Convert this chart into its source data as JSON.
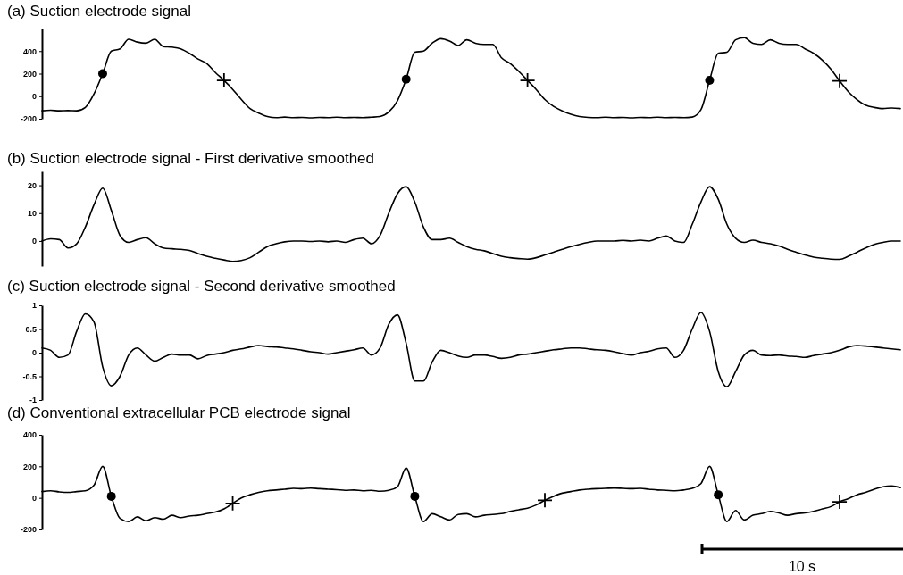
{
  "chart_data": [
    {
      "type": "line",
      "title": "(a)  Suction electrode signal",
      "categories": [
        null,
        null,
        null,
        null,
        null,
        null,
        null,
        null,
        null,
        null,
        null,
        null,
        null,
        null,
        null,
        null,
        null,
        null,
        null,
        null,
        null,
        null,
        null,
        null,
        null,
        null,
        null,
        null,
        null,
        null,
        null,
        null,
        null,
        null,
        null,
        null,
        null,
        null,
        null,
        null,
        null,
        null,
        null,
        null,
        null,
        null,
        null,
        null,
        null,
        null,
        null,
        null,
        null,
        null,
        null,
        null,
        null,
        null,
        null,
        null,
        null,
        null,
        null,
        null,
        null,
        null,
        null,
        null,
        null,
        null,
        null,
        null,
        null,
        null,
        null,
        null,
        null,
        null,
        null,
        null,
        null,
        null,
        null,
        null,
        null,
        null,
        null,
        null,
        null,
        null,
        null,
        null,
        null,
        null,
        null,
        null,
        null,
        null,
        null,
        null
      ],
      "ylim": [
        -200,
        600
      ],
      "yticks": [
        -200,
        0,
        200,
        400
      ],
      "tick_labels": "y",
      "series": [
        {
          "color": "#000000",
          "values": [
            -130,
            -125,
            -130,
            -128,
            -130,
            -100,
            20,
            200,
            400,
            420,
            505,
            480,
            470,
            505,
            440,
            435,
            420,
            380,
            330,
            290,
            210,
            140,
            60,
            -30,
            -110,
            -150,
            -180,
            -190,
            -185,
            -190,
            -188,
            -192,
            -188,
            -190,
            -186,
            -190,
            -188,
            -190,
            -186,
            -180,
            -140,
            -40,
            150,
            390,
            400,
            470,
            510,
            490,
            450,
            500,
            470,
            460,
            460,
            340,
            290,
            220,
            140,
            60,
            -30,
            -90,
            -130,
            -160,
            -180,
            -188,
            -190,
            -186,
            -190,
            -188,
            -192,
            -188,
            -190,
            -186,
            -190,
            -188,
            -190,
            -185,
            -120,
            140,
            380,
            390,
            500,
            520,
            470,
            460,
            500,
            470,
            460,
            460,
            420,
            380,
            320,
            240,
            135,
            40,
            -30,
            -80,
            -100,
            -110,
            -105,
            -110
          ]
        },
        {
          "type": "scatter",
          "marker": "circle",
          "color": "#000000",
          "values": [
            null,
            null,
            null,
            null,
            null,
            null,
            null,
            200,
            null,
            null,
            null,
            null,
            null,
            null,
            null,
            null,
            null,
            null,
            null,
            null,
            null,
            null,
            null,
            null,
            null,
            null,
            null,
            null,
            null,
            null,
            null,
            null,
            null,
            null,
            null,
            null,
            null,
            null,
            null,
            null,
            null,
            null,
            150,
            null,
            null,
            null,
            null,
            null,
            null,
            null,
            null,
            null,
            null,
            null,
            null,
            null,
            null,
            null,
            null,
            null,
            null,
            null,
            null,
            null,
            null,
            null,
            null,
            null,
            null,
            null,
            null,
            null,
            null,
            null,
            null,
            null,
            null,
            140,
            null,
            null,
            null,
            null,
            null,
            null,
            null,
            null,
            null,
            null,
            null,
            null,
            null,
            null,
            null,
            null,
            null,
            null,
            null,
            null,
            null,
            null
          ]
        },
        {
          "type": "scatter",
          "marker": "cross",
          "color": "#000000",
          "values": [
            null,
            null,
            null,
            null,
            null,
            null,
            null,
            null,
            null,
            null,
            null,
            null,
            null,
            null,
            null,
            null,
            null,
            null,
            null,
            null,
            null,
            140,
            null,
            null,
            null,
            null,
            null,
            null,
            null,
            null,
            null,
            null,
            null,
            null,
            null,
            null,
            null,
            null,
            null,
            null,
            null,
            null,
            null,
            null,
            null,
            null,
            null,
            null,
            null,
            null,
            null,
            null,
            null,
            null,
            null,
            null,
            140,
            null,
            null,
            null,
            null,
            null,
            null,
            null,
            null,
            null,
            null,
            null,
            null,
            null,
            null,
            null,
            null,
            null,
            null,
            null,
            null,
            null,
            null,
            null,
            null,
            null,
            null,
            null,
            null,
            null,
            null,
            null,
            null,
            null,
            null,
            null,
            135,
            null,
            null,
            null,
            null,
            null,
            null,
            null
          ]
        }
      ]
    },
    {
      "type": "line",
      "title": "(b)  Suction electrode signal - First derivative smoothed",
      "categories": [
        null,
        null,
        null,
        null,
        null,
        null,
        null,
        null,
        null,
        null,
        null,
        null,
        null,
        null,
        null,
        null,
        null,
        null,
        null,
        null,
        null,
        null,
        null,
        null,
        null,
        null,
        null,
        null,
        null,
        null,
        null,
        null,
        null,
        null,
        null,
        null,
        null,
        null,
        null,
        null,
        null,
        null,
        null,
        null,
        null,
        null,
        null,
        null,
        null,
        null,
        null,
        null,
        null,
        null,
        null,
        null,
        null,
        null,
        null,
        null,
        null,
        null,
        null,
        null,
        null,
        null,
        null,
        null,
        null,
        null,
        null,
        null,
        null,
        null,
        null,
        null,
        null,
        null,
        null,
        null,
        null,
        null,
        null,
        null,
        null,
        null,
        null,
        null,
        null,
        null,
        null,
        null,
        null,
        null,
        null,
        null,
        null,
        null,
        null,
        null
      ],
      "ylim": [
        -9,
        25
      ],
      "yticks": [
        0,
        10,
        20
      ],
      "tick_labels": "y",
      "series": [
        {
          "color": "#000000",
          "values": [
            0,
            0.8,
            0.5,
            -2.5,
            -1,
            5,
            13,
            19,
            11,
            2,
            -0.5,
            0.5,
            1.2,
            -1,
            -2.5,
            -2.8,
            -3,
            -3.4,
            -4.5,
            -5.5,
            -6.2,
            -6.8,
            -7.3,
            -7,
            -6,
            -4,
            -2,
            -1,
            -0.3,
            0,
            0,
            -0.2,
            0,
            -0.3,
            0,
            -0.5,
            0.5,
            1,
            -1,
            2,
            10,
            17,
            19.5,
            14,
            5,
            0.5,
            0.5,
            1,
            -0.5,
            -2,
            -3,
            -3.5,
            -4.5,
            -5.5,
            -6,
            -6.3,
            -6.5,
            -6,
            -5,
            -4,
            -3,
            -2,
            -1.2,
            -0.5,
            0,
            0,
            0,
            0.2,
            0,
            0.3,
            0,
            1,
            1.8,
            0,
            -0.5,
            6,
            14,
            19.5,
            15,
            6,
            1,
            -0.5,
            0.3,
            -0.5,
            -1,
            -1.8,
            -3,
            -4,
            -5,
            -5.8,
            -6.2,
            -6.5,
            -6.6,
            -5.5,
            -4,
            -2.5,
            -1.2,
            -0.5,
            0,
            0
          ]
        }
      ]
    },
    {
      "type": "line",
      "title": "(c)  Suction electrode signal - Second derivative smoothed",
      "categories": [
        null,
        null,
        null,
        null,
        null,
        null,
        null,
        null,
        null,
        null,
        null,
        null,
        null,
        null,
        null,
        null,
        null,
        null,
        null,
        null,
        null,
        null,
        null,
        null,
        null,
        null,
        null,
        null,
        null,
        null,
        null,
        null,
        null,
        null,
        null,
        null,
        null,
        null,
        null,
        null,
        null,
        null,
        null,
        null,
        null,
        null,
        null,
        null,
        null,
        null,
        null,
        null,
        null,
        null,
        null,
        null,
        null,
        null,
        null,
        null,
        null,
        null,
        null,
        null,
        null,
        null,
        null,
        null,
        null,
        null,
        null,
        null,
        null,
        null,
        null,
        null,
        null,
        null,
        null,
        null,
        null,
        null,
        null,
        null,
        null,
        null,
        null,
        null,
        null,
        null,
        null,
        null,
        null,
        null,
        null,
        null,
        null,
        null,
        null,
        null
      ],
      "ylim": [
        -1,
        1
      ],
      "yticks": [
        -1,
        -0.5,
        0,
        0.5,
        1
      ],
      "tick_labels": "y",
      "series": [
        {
          "color": "#000000",
          "values": [
            0.1,
            0.05,
            -0.1,
            -0.05,
            0.45,
            0.82,
            0.65,
            -0.3,
            -0.7,
            -0.5,
            -0.05,
            0.1,
            -0.05,
            -0.18,
            -0.1,
            -0.03,
            -0.05,
            -0.05,
            -0.13,
            -0.06,
            -0.03,
            0,
            0.05,
            0.08,
            0.12,
            0.15,
            0.13,
            0.12,
            0.1,
            0.08,
            0.05,
            0.02,
            0,
            -0.03,
            0,
            0.03,
            0.06,
            0.1,
            -0.05,
            0.1,
            0.6,
            0.8,
            0.2,
            -0.6,
            -0.6,
            -0.2,
            0.05,
            0,
            -0.07,
            -0.1,
            -0.05,
            -0.05,
            -0.08,
            -0.12,
            -0.1,
            -0.05,
            -0.03,
            0,
            0.03,
            0.06,
            0.08,
            0.1,
            0.1,
            0.08,
            0.06,
            0.05,
            0.02,
            -0.02,
            -0.05,
            0,
            0.03,
            0.08,
            0.1,
            -0.1,
            0.05,
            0.5,
            0.85,
            0.45,
            -0.4,
            -0.72,
            -0.4,
            -0.05,
            0.05,
            -0.05,
            -0.06,
            -0.05,
            -0.07,
            -0.08,
            -0.1,
            -0.06,
            -0.03,
            0,
            0.05,
            0.12,
            0.15,
            0.14,
            0.12,
            0.1,
            0.08,
            0.06
          ]
        }
      ]
    },
    {
      "type": "line",
      "title": "(d)  Conventional extracellular PCB electrode signal",
      "annotations": [
        "10 s"
      ],
      "categories": [
        null,
        null,
        null,
        null,
        null,
        null,
        null,
        null,
        null,
        null,
        null,
        null,
        null,
        null,
        null,
        null,
        null,
        null,
        null,
        null,
        null,
        null,
        null,
        null,
        null,
        null,
        null,
        null,
        null,
        null,
        null,
        null,
        null,
        null,
        null,
        null,
        null,
        null,
        null,
        null,
        null,
        null,
        null,
        null,
        null,
        null,
        null,
        null,
        null,
        null,
        null,
        null,
        null,
        null,
        null,
        null,
        null,
        null,
        null,
        null,
        null,
        null,
        null,
        null,
        null,
        null,
        null,
        null,
        null,
        null,
        null,
        null,
        null,
        null,
        null,
        null,
        null,
        null,
        null,
        null,
        null,
        null,
        null,
        null,
        null,
        null,
        null,
        null,
        null,
        null,
        null,
        null,
        null,
        null,
        null,
        null,
        null,
        null,
        null,
        null
      ],
      "ylim": [
        -200,
        400
      ],
      "yticks": [
        -200,
        0,
        200,
        400
      ],
      "tick_labels": "y",
      "series": [
        {
          "color": "#000000",
          "values": [
            40,
            45,
            38,
            35,
            40,
            45,
            80,
            200,
            10,
            -130,
            -150,
            -120,
            -145,
            -125,
            -135,
            -110,
            -125,
            -115,
            -110,
            -100,
            -90,
            -70,
            -35,
            0,
            20,
            35,
            45,
            50,
            55,
            60,
            58,
            62,
            58,
            55,
            52,
            48,
            50,
            45,
            48,
            42,
            48,
            70,
            190,
            10,
            -150,
            -100,
            -120,
            -140,
            -105,
            -100,
            -120,
            -110,
            -105,
            -100,
            -85,
            -75,
            -65,
            -45,
            -15,
            10,
            30,
            40,
            50,
            55,
            58,
            60,
            62,
            60,
            58,
            60,
            55,
            50,
            48,
            45,
            50,
            60,
            90,
            200,
            20,
            -150,
            -80,
            -140,
            -110,
            -100,
            -85,
            -95,
            -110,
            -100,
            -95,
            -85,
            -70,
            -55,
            -25,
            -5,
            20,
            35,
            55,
            70,
            75,
            65
          ]
        },
        {
          "type": "scatter",
          "marker": "circle",
          "color": "#000000",
          "values": [
            null,
            null,
            null,
            null,
            null,
            null,
            null,
            null,
            10,
            null,
            null,
            null,
            null,
            null,
            null,
            null,
            null,
            null,
            null,
            null,
            null,
            null,
            null,
            null,
            null,
            null,
            null,
            null,
            null,
            null,
            null,
            null,
            null,
            null,
            null,
            null,
            null,
            null,
            null,
            null,
            null,
            null,
            null,
            10,
            null,
            null,
            null,
            null,
            null,
            null,
            null,
            null,
            null,
            null,
            null,
            null,
            null,
            null,
            null,
            null,
            null,
            null,
            null,
            null,
            null,
            null,
            null,
            null,
            null,
            null,
            null,
            null,
            null,
            null,
            null,
            null,
            null,
            null,
            20,
            null,
            null,
            null,
            null,
            null,
            null,
            null,
            null,
            null,
            null,
            null,
            null,
            null,
            null,
            null,
            null,
            null,
            null,
            null,
            null,
            null
          ]
        },
        {
          "type": "scatter",
          "marker": "cross",
          "color": "#000000",
          "values": [
            null,
            null,
            null,
            null,
            null,
            null,
            null,
            null,
            null,
            null,
            null,
            null,
            null,
            null,
            null,
            null,
            null,
            null,
            null,
            null,
            null,
            null,
            -35,
            null,
            null,
            null,
            null,
            null,
            null,
            null,
            null,
            null,
            null,
            null,
            null,
            null,
            null,
            null,
            null,
            null,
            null,
            null,
            null,
            null,
            null,
            null,
            null,
            null,
            null,
            null,
            null,
            null,
            null,
            null,
            null,
            null,
            null,
            null,
            -15,
            null,
            null,
            null,
            null,
            null,
            null,
            null,
            null,
            null,
            null,
            null,
            null,
            null,
            null,
            null,
            null,
            null,
            null,
            null,
            null,
            null,
            null,
            null,
            null,
            null,
            null,
            null,
            null,
            null,
            null,
            null,
            null,
            null,
            -25,
            null,
            null,
            null,
            null,
            null,
            null,
            null
          ]
        }
      ]
    }
  ]
}
